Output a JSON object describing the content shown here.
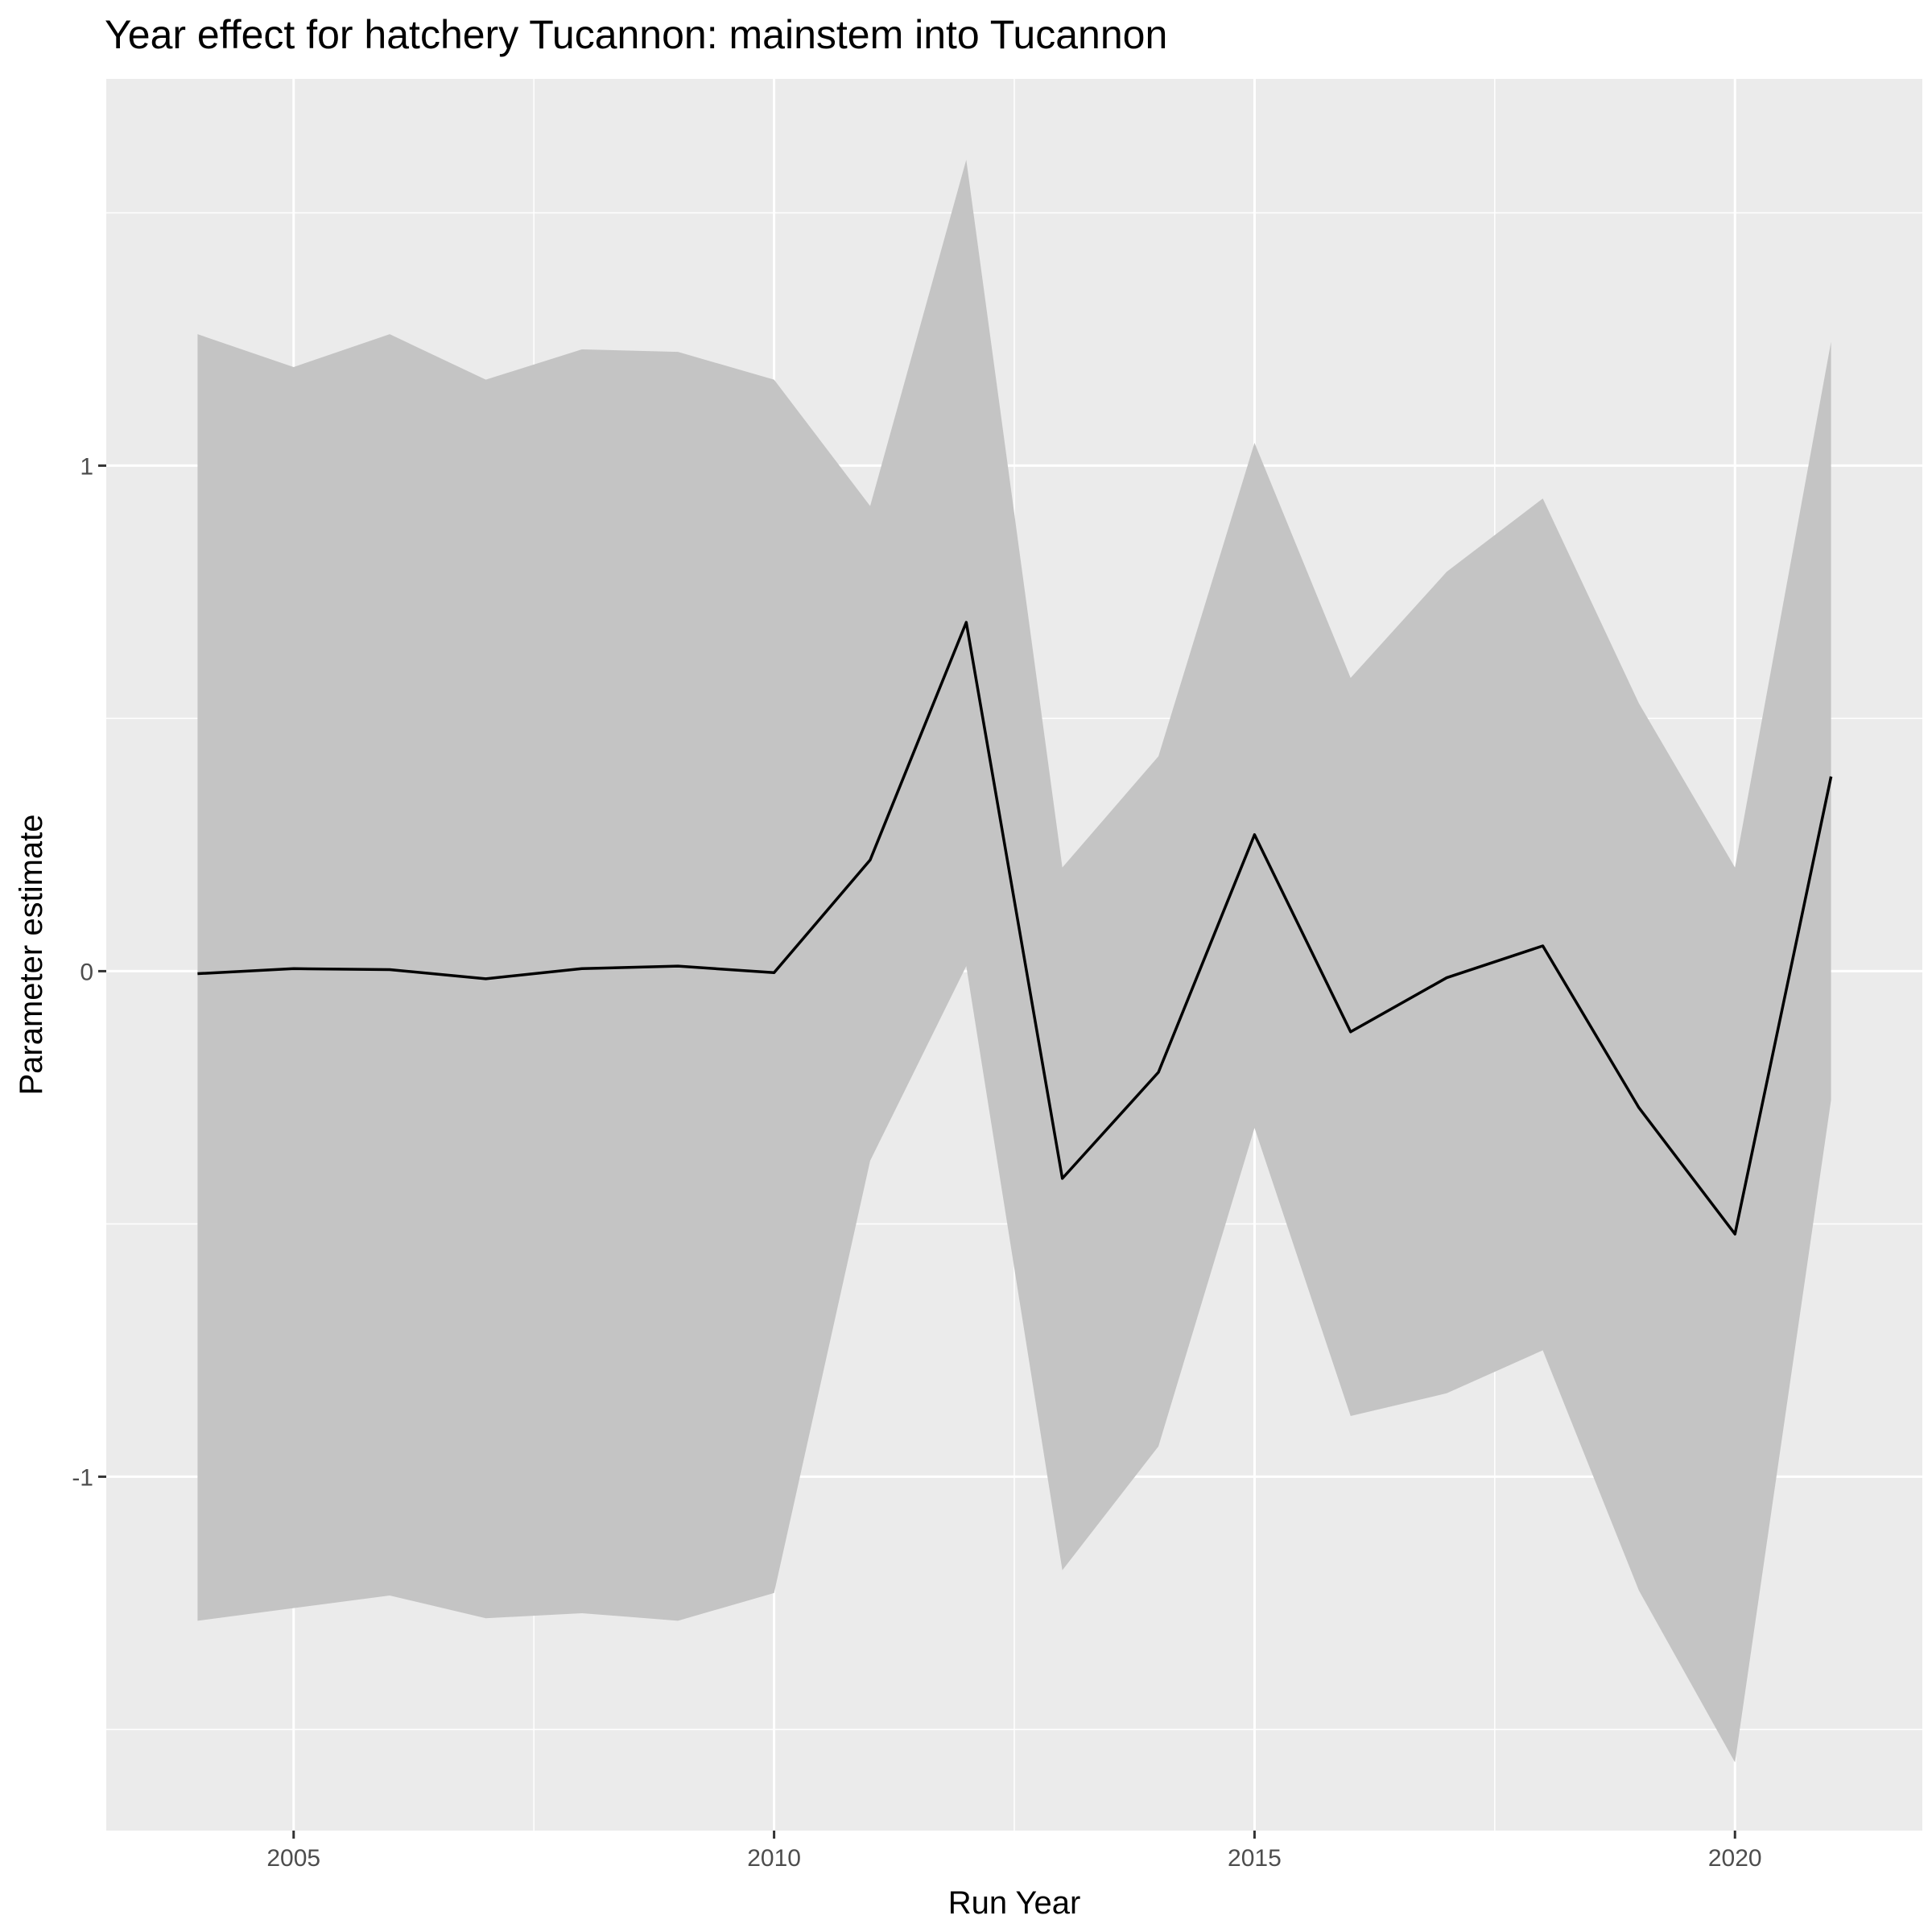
{
  "chart_data": {
    "type": "line",
    "title": "Year effect for hatchery Tucannon: mainstem into Tucannon",
    "xlabel": "Run Year",
    "ylabel": "Parameter estimate",
    "x": [
      2004,
      2005,
      2006,
      2007,
      2008,
      2009,
      2010,
      2011,
      2012,
      2013,
      2014,
      2015,
      2016,
      2017,
      2018,
      2019,
      2020,
      2021
    ],
    "series": [
      {
        "values": [
          -0.005,
          0.005,
          0.003,
          -0.015,
          0.005,
          0.01,
          -0.003,
          0.22,
          0.69,
          -0.41,
          -0.2,
          0.27,
          -0.12,
          -0.013,
          0.05,
          -0.27,
          -0.52,
          0.385
        ],
        "lower": [
          -1.285,
          -1.26,
          -1.235,
          -1.28,
          -1.27,
          -1.285,
          -1.23,
          -0.375,
          0.01,
          -1.185,
          -0.94,
          -0.31,
          -0.88,
          -0.835,
          -0.75,
          -1.225,
          -1.565,
          -0.255
        ],
        "upper": [
          1.26,
          1.195,
          1.26,
          1.17,
          1.23,
          1.225,
          1.17,
          0.92,
          1.605,
          0.205,
          0.425,
          1.045,
          0.58,
          0.79,
          0.935,
          0.53,
          0.205,
          1.245
        ]
      }
    ],
    "xlim": [
      2003.05,
      2021.95
    ],
    "ylim": [
      -1.7,
      1.765
    ],
    "x_ticks": [
      2005,
      2010,
      2015,
      2020
    ],
    "x_tick_labels": [
      "2005",
      "2010",
      "2015",
      "2020"
    ],
    "y_ticks": [
      -1,
      0,
      1
    ],
    "y_tick_labels": [
      "-1",
      "0",
      "1"
    ],
    "x_minor_ticks": [
      2007.5,
      2012.5,
      2017.5
    ],
    "y_minor_ticks": [
      -1.5,
      -0.5,
      0.5,
      1.5
    ],
    "grid": true,
    "colors": {
      "panel_background": "#ebebeb",
      "grid_line": "#ffffff",
      "ribbon": "#c4c4c4",
      "line": "#000000",
      "tick_label": "#4d4d4d",
      "tick_mark": "#333333"
    }
  }
}
